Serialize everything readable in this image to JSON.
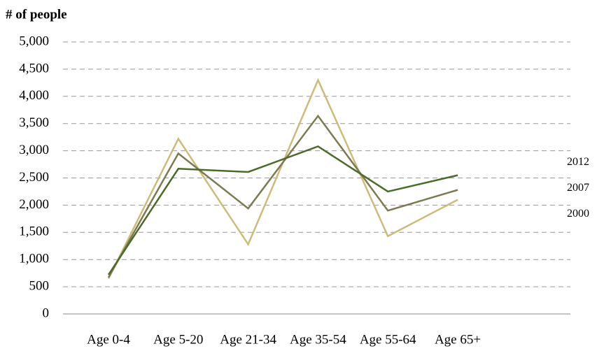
{
  "chart_data": {
    "type": "line",
    "title": "# of people",
    "categories": [
      "Age 0-4",
      "Age 5-20",
      "Age 21-34",
      "Age 35-54",
      "Age 55-64",
      "Age 65+"
    ],
    "series": [
      {
        "name": "2000",
        "color": "#cdbb7c",
        "values": [
          650,
          3220,
          1280,
          4300,
          1430,
          2100
        ]
      },
      {
        "name": "2007",
        "color": "#7d7a52",
        "values": [
          670,
          2950,
          1940,
          3640,
          1900,
          2280
        ]
      },
      {
        "name": "2012",
        "color": "#4b6b2b",
        "values": [
          720,
          2670,
          2610,
          3080,
          2250,
          2550
        ]
      }
    ],
    "ylim": [
      0,
      5000
    ],
    "yticks": [
      0,
      500,
      {
        "value": 1000,
        "label": "1,000"
      },
      {
        "value": 1500,
        "label": "1,500"
      },
      {
        "value": 2000,
        "label": "2,000"
      },
      {
        "value": 2500,
        "label": "2,500"
      },
      {
        "value": 3000,
        "label": "3,000"
      },
      {
        "value": 3500,
        "label": "3,500"
      },
      {
        "value": 4000,
        "label": "4,000"
      },
      {
        "value": 4500,
        "label": "4,500"
      },
      {
        "value": 5000,
        "label": "5,000"
      }
    ],
    "grid": true
  }
}
